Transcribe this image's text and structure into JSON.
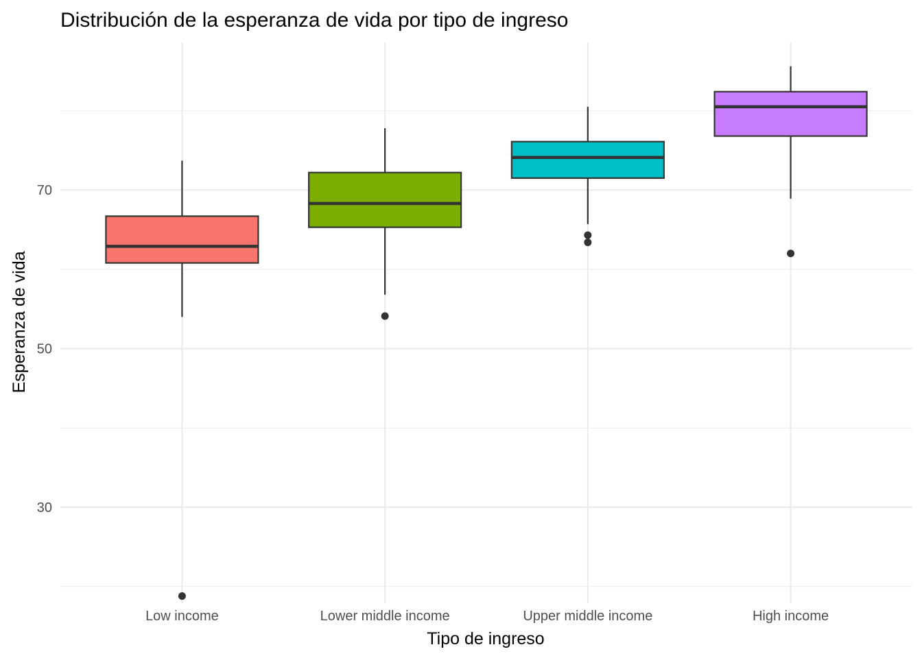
{
  "chart_data": {
    "type": "boxplot",
    "title": "Distribución de la esperanza de vida por tipo de ingreso",
    "xlabel": "Tipo de ingreso",
    "ylabel": "Esperanza de vida",
    "ylim": [
      17.9,
      88.6
    ],
    "yticks": [
      30,
      50,
      70
    ],
    "categories": [
      "Low income",
      "Lower middle income",
      "Upper middle income",
      "High income"
    ],
    "series": [
      {
        "name": "Low income",
        "color": "#F8766D",
        "min": 54.0,
        "q1": 60.8,
        "median": 62.9,
        "q3": 66.7,
        "max": 73.7,
        "outliers": [
          18.8
        ]
      },
      {
        "name": "Lower middle income",
        "color": "#7CAE00",
        "min": 56.8,
        "q1": 65.3,
        "median": 68.3,
        "q3": 72.2,
        "max": 77.8,
        "outliers": [
          54.1
        ]
      },
      {
        "name": "Upper middle income",
        "color": "#00BFC4",
        "min": 65.7,
        "q1": 71.5,
        "median": 74.1,
        "q3": 76.1,
        "max": 80.5,
        "outliers": [
          64.3,
          63.4
        ]
      },
      {
        "name": "High income",
        "color": "#C77CFF",
        "min": 68.9,
        "q1": 76.8,
        "median": 80.5,
        "q3": 82.4,
        "max": 85.6,
        "outliers": [
          62.0
        ]
      }
    ]
  }
}
